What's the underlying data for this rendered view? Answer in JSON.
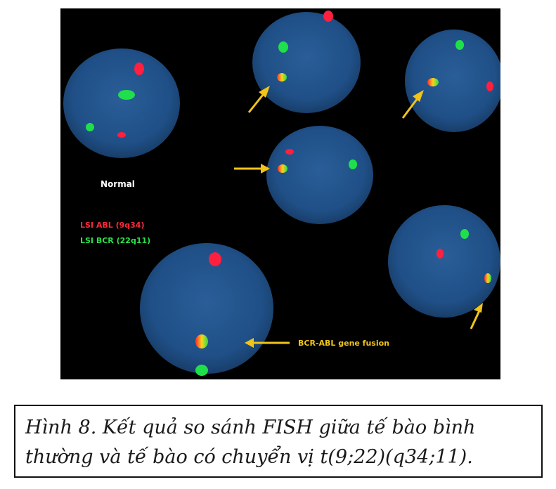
{
  "figure": {
    "label_normal": "Normal",
    "legend_abl": "LSI ABL (9q34)",
    "legend_bcr": "LSI BCR (22q11)",
    "fusion_label": "BCR-ABL gene fusion",
    "colors": {
      "background": "#000000",
      "nucleus": "#1f4f86",
      "red_signal": "#ff1f3f",
      "green_signal": "#1fe04a",
      "arrow": "#f0c419",
      "label_text": "#ffffff"
    }
  },
  "caption": {
    "line1": "Hình 8. Kết quả so sánh FISH giữa tế bào bình",
    "line2": "thường và tế bào có chuyển vị t(9;22)(q34;11)."
  }
}
